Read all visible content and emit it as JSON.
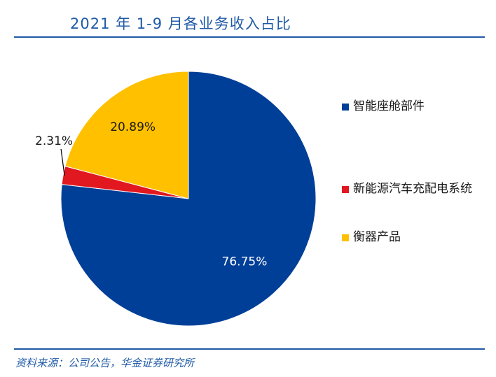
{
  "header": {
    "title": "2021 年 1-9 月各业务收入占比"
  },
  "chart_data": {
    "type": "pie",
    "title": "2021 年 1-9 月各业务收入占比",
    "categories": [
      "智能座舱部件",
      "新能源汽车充配电系统",
      "衡器产品"
    ],
    "values": [
      76.75,
      2.31,
      20.89
    ],
    "labels": [
      "76.75%",
      "2.31%",
      "20.89%"
    ],
    "colors": [
      "#003f98",
      "#e1181f",
      "#ffc000"
    ],
    "legend_position": "right"
  },
  "legend": {
    "items": [
      {
        "label": "智能座舱部件",
        "color": "#003f98"
      },
      {
        "label": "新能源汽车充配电系统",
        "color": "#e1181f"
      },
      {
        "label": "衡器产品",
        "color": "#ffc000"
      }
    ]
  },
  "footer": {
    "source": "资料来源：公司公告，华金证券研究所"
  }
}
